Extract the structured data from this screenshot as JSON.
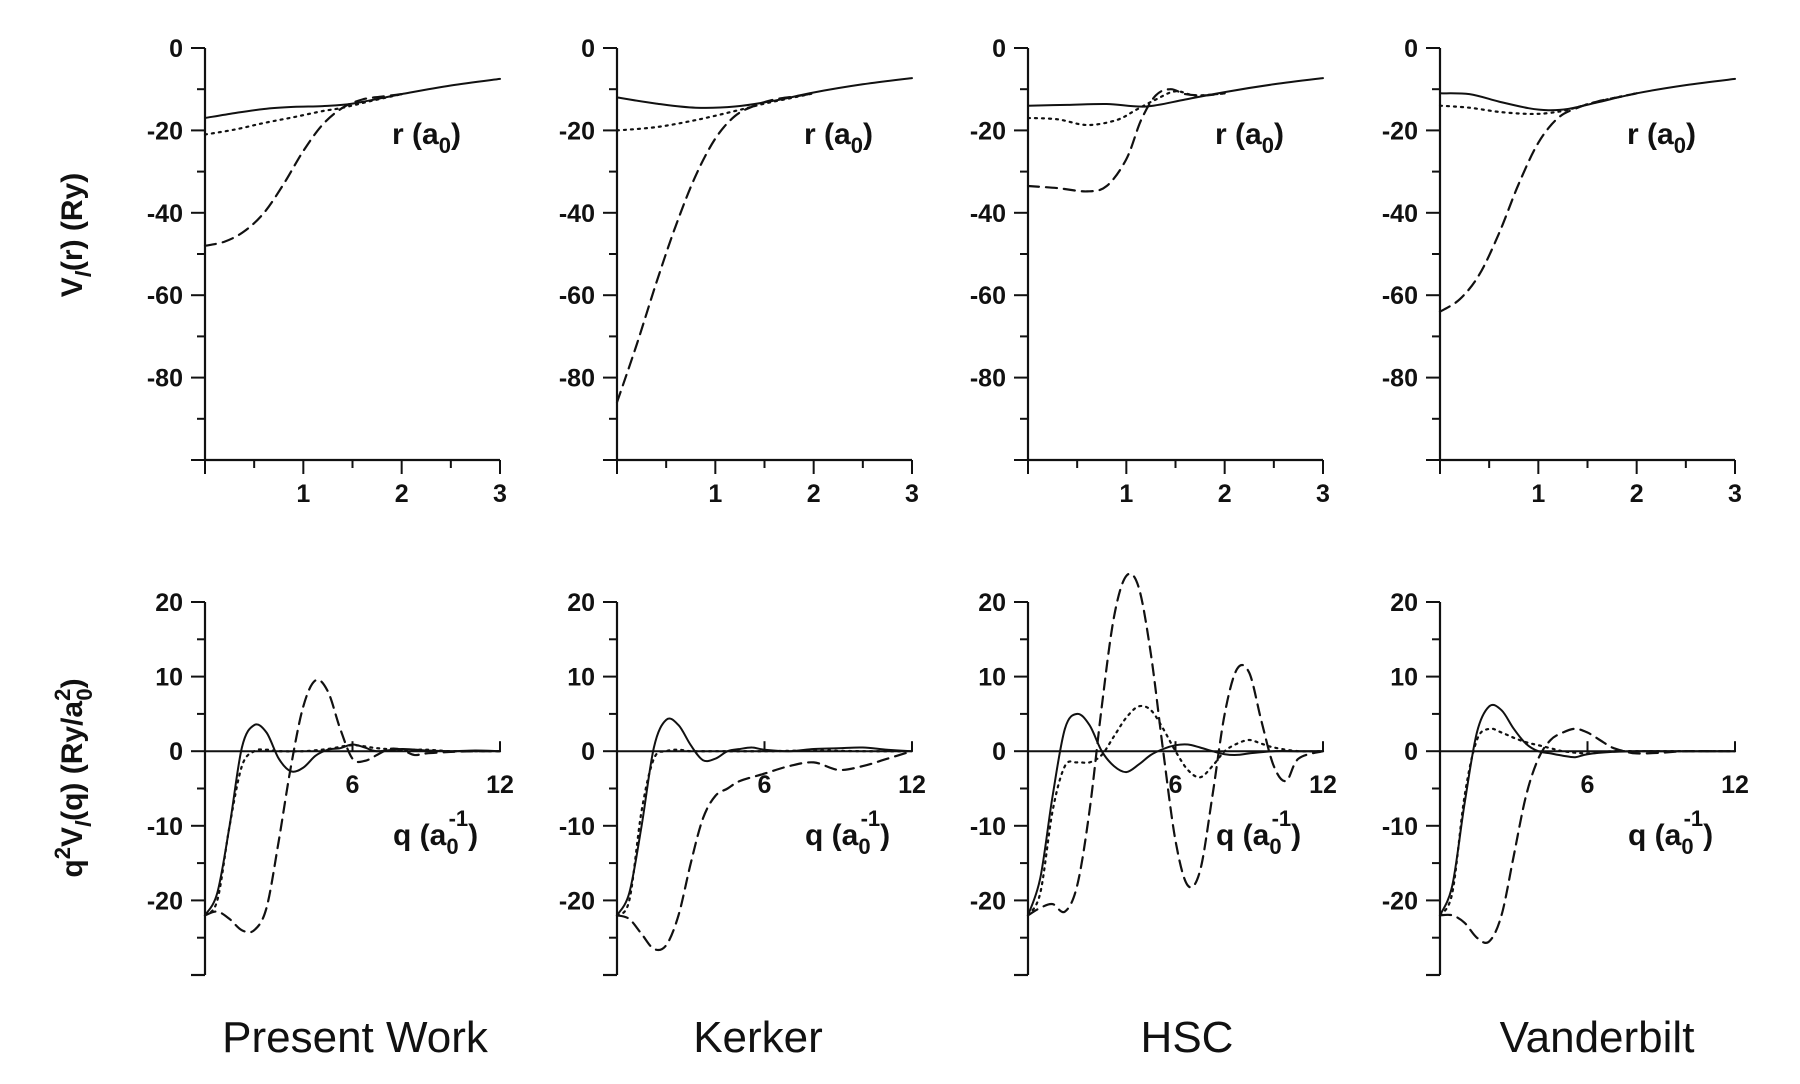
{
  "chart_data": [
    {
      "type": "line",
      "panel": "top",
      "column": 0,
      "title": "Present Work",
      "xlabel": "r (a0)",
      "ylabel": "Vl(r) (Ry)",
      "xlim": [
        0,
        3
      ],
      "ylim": [
        -100,
        0
      ],
      "xticks": [
        1,
        2,
        3
      ],
      "yticks": [
        0,
        -20,
        -40,
        -60,
        -80
      ],
      "zero_line": false,
      "series": [
        {
          "style": "solid",
          "x": [
            0,
            0.3,
            0.6,
            0.9,
            1.2,
            1.5,
            2.0,
            2.5,
            3.0
          ],
          "y": [
            -17,
            -15.8,
            -14.8,
            -14.3,
            -14.1,
            -13.5,
            -11.2,
            -9.1,
            -7.5
          ]
        },
        {
          "style": "dotted",
          "x": [
            0,
            0.3,
            0.6,
            0.9,
            1.2,
            1.4,
            1.7,
            2.0
          ],
          "y": [
            -21,
            -19.8,
            -18.2,
            -16.8,
            -15.3,
            -14.5,
            -12.8,
            -11.2
          ]
        },
        {
          "style": "dashed",
          "x": [
            0,
            0.2,
            0.4,
            0.6,
            0.8,
            1.0,
            1.2,
            1.4,
            1.6,
            1.8,
            2.0
          ],
          "y": [
            -48,
            -47,
            -44.5,
            -40,
            -33,
            -25,
            -18.5,
            -14.5,
            -12.5,
            -11.8,
            -11.2
          ]
        }
      ]
    },
    {
      "type": "line",
      "panel": "top",
      "column": 1,
      "title": "Kerker",
      "xlabel": "r (a0)",
      "xlim": [
        0,
        3
      ],
      "ylim": [
        -100,
        0
      ],
      "xticks": [
        1,
        2,
        3
      ],
      "yticks": [
        0,
        -20,
        -40,
        -60,
        -80
      ],
      "zero_line": false,
      "series": [
        {
          "style": "solid",
          "x": [
            0,
            0.4,
            0.8,
            1.2,
            1.6,
            2.0,
            2.5,
            3.0
          ],
          "y": [
            -12,
            -13.5,
            -14.5,
            -14.2,
            -12.8,
            -10.8,
            -8.8,
            -7.3
          ]
        },
        {
          "style": "dotted",
          "x": [
            0,
            0.4,
            0.8,
            1.2,
            1.5,
            1.8,
            2.0
          ],
          "y": [
            -20,
            -19.2,
            -17.5,
            -15.3,
            -13.5,
            -12,
            -11
          ]
        },
        {
          "style": "dashed",
          "x": [
            0,
            0.2,
            0.4,
            0.6,
            0.8,
            1.0,
            1.2,
            1.4,
            1.6,
            1.8,
            2.0
          ],
          "y": [
            -86,
            -72,
            -57,
            -43,
            -31,
            -22,
            -16.5,
            -14,
            -12.5,
            -11.8,
            -11
          ]
        }
      ]
    },
    {
      "type": "line",
      "panel": "top",
      "column": 2,
      "title": "HSC",
      "xlabel": "r (a0)",
      "xlim": [
        0,
        3
      ],
      "ylim": [
        -100,
        0
      ],
      "xticks": [
        1,
        2,
        3
      ],
      "yticks": [
        0,
        -20,
        -40,
        -60,
        -80
      ],
      "zero_line": false,
      "series": [
        {
          "style": "solid",
          "x": [
            0,
            0.4,
            0.8,
            1.2,
            1.6,
            2.0,
            2.5,
            3.0
          ],
          "y": [
            -14,
            -13.8,
            -13.6,
            -14.2,
            -12.5,
            -10.7,
            -8.8,
            -7.3
          ]
        },
        {
          "style": "dotted",
          "x": [
            0,
            0.3,
            0.6,
            0.9,
            1.1,
            1.3,
            1.5,
            1.7,
            2.0
          ],
          "y": [
            -17,
            -17.3,
            -18.7,
            -17.5,
            -15,
            -12.5,
            -10.5,
            -11.5,
            -11
          ]
        },
        {
          "style": "dashed",
          "x": [
            0,
            0.3,
            0.6,
            0.8,
            1.0,
            1.15,
            1.3,
            1.45,
            1.6,
            1.8,
            2.0
          ],
          "y": [
            -33.5,
            -34,
            -34.8,
            -33.5,
            -27,
            -17.5,
            -11.5,
            -10,
            -11.2,
            -11.5,
            -11
          ]
        }
      ]
    },
    {
      "type": "line",
      "panel": "top",
      "column": 3,
      "title": "Vanderbilt",
      "xlabel": "r (a0)",
      "xlim": [
        0,
        3
      ],
      "ylim": [
        -100,
        0
      ],
      "xticks": [
        1,
        2,
        3
      ],
      "yticks": [
        0,
        -20,
        -40,
        -60,
        -80
      ],
      "zero_line": false,
      "series": [
        {
          "style": "solid",
          "x": [
            0,
            0.3,
            0.6,
            0.9,
            1.1,
            1.3,
            1.6,
            2.0,
            2.5,
            3.0
          ],
          "y": [
            -11,
            -11.2,
            -13,
            -14.6,
            -15.1,
            -14.8,
            -13.2,
            -11,
            -9,
            -7.5
          ]
        },
        {
          "style": "dotted",
          "x": [
            0,
            0.3,
            0.6,
            0.9,
            1.1,
            1.3,
            1.6,
            2.0
          ],
          "y": [
            -14,
            -14.5,
            -15.5,
            -16,
            -15.8,
            -15,
            -13,
            -11
          ]
        },
        {
          "style": "dashed",
          "x": [
            0,
            0.2,
            0.4,
            0.6,
            0.8,
            1.0,
            1.2,
            1.4,
            1.6,
            1.8,
            2.0
          ],
          "y": [
            -64,
            -61,
            -55,
            -45,
            -33,
            -23,
            -17,
            -14.5,
            -13,
            -12,
            -11
          ]
        }
      ]
    },
    {
      "type": "line",
      "panel": "bottom",
      "column": 0,
      "title": "Present Work",
      "xlabel": "q (a0-1)",
      "ylabel": "q2Vl(q) (Ry/a02)",
      "xlim": [
        0,
        12
      ],
      "ylim": [
        -30,
        20
      ],
      "xticks": [
        6,
        12
      ],
      "yticks": [
        20,
        10,
        0,
        -10,
        -20
      ],
      "zero_line": true,
      "series": [
        {
          "style": "solid",
          "x": [
            0,
            0.5,
            1,
            1.5,
            2,
            2.5,
            3,
            3.5,
            4,
            4.5,
            5,
            5.5,
            6,
            6.5,
            7,
            8,
            9,
            10,
            11,
            12
          ],
          "y": [
            -22,
            -19,
            -10,
            0.5,
            3.5,
            2.5,
            -1,
            -2.7,
            -2.2,
            -0.6,
            0.2,
            0.4,
            0.9,
            0.5,
            0,
            0.3,
            0.1,
            0,
            0.1,
            0
          ]
        },
        {
          "style": "dotted",
          "x": [
            0,
            0.5,
            1,
            1.5,
            2,
            2.5,
            3,
            4,
            5,
            6,
            7,
            8,
            9,
            10,
            11,
            12
          ],
          "y": [
            -22,
            -20,
            -10,
            -2,
            0,
            0.2,
            0,
            0,
            0.3,
            0.8,
            0.4,
            0.2,
            0.2,
            0,
            0,
            0
          ]
        },
        {
          "style": "dashed",
          "x": [
            0,
            0.5,
            1,
            1.5,
            2,
            2.5,
            3,
            3.5,
            4,
            4.5,
            5,
            5.5,
            6,
            6.5,
            7,
            7.5,
            8,
            8.5,
            9,
            10,
            11,
            12
          ],
          "y": [
            -22,
            -21.5,
            -22.5,
            -24,
            -24,
            -21,
            -12,
            -2,
            6,
            9.5,
            8,
            3,
            -1,
            -1.3,
            -0.5,
            0.3,
            0.2,
            -0.5,
            -0.3,
            -0.1,
            0,
            0
          ]
        }
      ]
    },
    {
      "type": "line",
      "panel": "bottom",
      "column": 1,
      "title": "Kerker",
      "xlabel": "q (a0-1)",
      "xlim": [
        0,
        12
      ],
      "ylim": [
        -30,
        20
      ],
      "xticks": [
        6,
        12
      ],
      "yticks": [
        20,
        10,
        0,
        -10,
        -20
      ],
      "zero_line": true,
      "series": [
        {
          "style": "solid",
          "x": [
            0,
            0.5,
            1,
            1.5,
            2,
            2.5,
            3,
            3.5,
            4,
            4.5,
            5,
            5.5,
            6,
            7,
            8,
            9,
            10,
            11,
            12
          ],
          "y": [
            -22,
            -19,
            -10,
            0.5,
            4.2,
            3.5,
            0.8,
            -1.2,
            -1,
            0,
            0.3,
            0.5,
            0.2,
            0,
            0.3,
            0.4,
            0.5,
            0.2,
            0
          ]
        },
        {
          "style": "dotted",
          "x": [
            0,
            0.5,
            1,
            1.5,
            2,
            2.5,
            3,
            4,
            6,
            8,
            10,
            12
          ],
          "y": [
            -22,
            -20,
            -8,
            -1,
            0,
            0.2,
            0,
            0,
            0,
            0.1,
            0,
            0
          ]
        },
        {
          "style": "dashed",
          "x": [
            0,
            0.5,
            1,
            1.5,
            2,
            2.5,
            3,
            3.5,
            4,
            4.5,
            5,
            6,
            7,
            8,
            9,
            10,
            11,
            12
          ],
          "y": [
            -22,
            -22.5,
            -24.5,
            -26.5,
            -26,
            -22,
            -15,
            -9,
            -6,
            -5,
            -4,
            -3,
            -2,
            -1.5,
            -2.5,
            -2,
            -1,
            0
          ]
        }
      ]
    },
    {
      "type": "line",
      "panel": "bottom",
      "column": 2,
      "title": "HSC",
      "xlabel": "q (a0-1)",
      "xlim": [
        0,
        12
      ],
      "ylim": [
        -30,
        20
      ],
      "xticks": [
        6,
        12
      ],
      "yticks": [
        20,
        10,
        0,
        -10,
        -20
      ],
      "zero_line": true,
      "series": [
        {
          "style": "solid",
          "x": [
            0,
            0.5,
            1,
            1.5,
            2,
            2.5,
            3,
            3.5,
            4,
            4.5,
            5,
            5.5,
            6,
            6.5,
            7,
            7.5,
            8,
            8.5,
            9,
            10,
            11,
            12
          ],
          "y": [
            -22,
            -17,
            -6,
            3,
            5,
            3.5,
            0,
            -2,
            -2.8,
            -1.8,
            -0.5,
            0.3,
            0.8,
            0.9,
            0.5,
            0,
            -0.4,
            -0.5,
            -0.3,
            0,
            0,
            0
          ]
        },
        {
          "style": "dotted",
          "x": [
            0,
            0.5,
            1,
            1.5,
            2,
            2.5,
            3,
            3.5,
            4,
            4.5,
            5,
            5.5,
            6,
            6.5,
            7,
            7.5,
            8,
            8.5,
            9,
            9.5,
            10,
            11,
            12
          ],
          "y": [
            -22,
            -19,
            -8,
            -2,
            -1.5,
            -1.5,
            -0.5,
            2,
            4.5,
            6,
            5.5,
            3,
            0,
            -2.5,
            -3.5,
            -2,
            0,
            1,
            1.5,
            1,
            0.5,
            0,
            0
          ]
        },
        {
          "style": "dashed",
          "x": [
            0,
            0.5,
            1,
            1.5,
            2,
            2.5,
            3,
            3.5,
            4,
            4.5,
            5,
            5.5,
            6,
            6.5,
            7,
            7.5,
            8,
            8.5,
            9,
            9.5,
            10,
            10.5,
            11,
            12
          ],
          "y": [
            -22,
            -21,
            -20.5,
            -21.5,
            -18,
            -8,
            6,
            18,
            23.5,
            22,
            13,
            0,
            -12,
            -18,
            -16,
            -6,
            5,
            11,
            10.5,
            4,
            -2,
            -4,
            -1,
            0
          ]
        }
      ]
    },
    {
      "type": "line",
      "panel": "bottom",
      "column": 3,
      "title": "Vanderbilt",
      "xlabel": "q (a0-1)",
      "xlim": [
        0,
        12
      ],
      "ylim": [
        -30,
        20
      ],
      "xticks": [
        6,
        12
      ],
      "yticks": [
        20,
        10,
        0,
        -10,
        -20
      ],
      "zero_line": true,
      "series": [
        {
          "style": "solid",
          "x": [
            0,
            0.5,
            1,
            1.5,
            2,
            2.5,
            3,
            3.5,
            4,
            4.5,
            5,
            5.5,
            6,
            7,
            8,
            9,
            10,
            11,
            12
          ],
          "y": [
            -22,
            -18,
            -7,
            2.5,
            6,
            5.5,
            3,
            1,
            0,
            -0.3,
            -0.6,
            -0.8,
            -0.4,
            -0.1,
            0,
            0,
            0,
            0,
            0
          ]
        },
        {
          "style": "dotted",
          "x": [
            0,
            0.5,
            1,
            1.5,
            2,
            2.5,
            3,
            3.5,
            4,
            4.5,
            5,
            6,
            7,
            8,
            10,
            12
          ],
          "y": [
            -22,
            -19,
            -6,
            1.5,
            3,
            2.5,
            1.8,
            1.2,
            0.8,
            0.4,
            0,
            -0.3,
            0,
            0,
            0,
            0
          ]
        },
        {
          "style": "dashed",
          "x": [
            0,
            0.5,
            1,
            1.5,
            2,
            2.5,
            3,
            3.5,
            4,
            4.5,
            5,
            5.5,
            6,
            6.5,
            7,
            7.5,
            8,
            9,
            10,
            11,
            12
          ],
          "y": [
            -22,
            -22,
            -23,
            -25,
            -25.5,
            -22,
            -14,
            -6,
            -1,
            1.5,
            2.5,
            3,
            2.5,
            1.5,
            0.5,
            0,
            -0.3,
            -0.2,
            0,
            0,
            0
          ]
        }
      ]
    }
  ],
  "labels": {
    "top_ylabel_main": "V",
    "top_ylabel_sub": "l",
    "top_ylabel_rest": "(r) (Ry)",
    "top_xlabel_main": "r (a",
    "top_xlabel_sub": "0",
    "top_xlabel_end": ")",
    "bottom_ylabel_q": "q",
    "bottom_ylabel_q_sup": "2",
    "bottom_ylabel_v": "V",
    "bottom_ylabel_v_sub": "l",
    "bottom_ylabel_mid": "(q)  (Ry/a",
    "bottom_ylabel_a_sup": "2",
    "bottom_ylabel_a_sub": "0",
    "bottom_ylabel_end": ")",
    "bottom_xlabel_main": "q (a",
    "bottom_xlabel_sub": "0",
    "bottom_xlabel_sup": "-1",
    "bottom_xlabel_end": ")"
  }
}
